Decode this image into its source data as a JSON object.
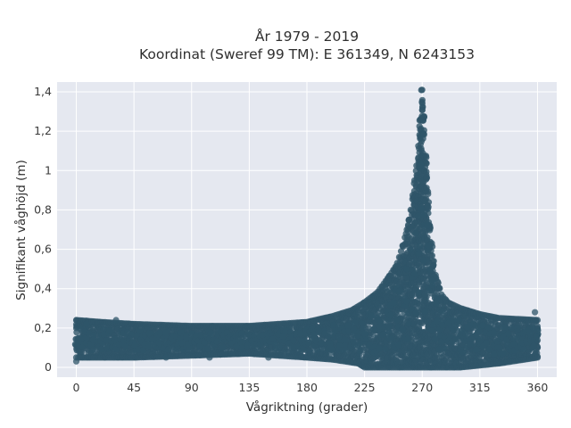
{
  "chart_data": {
    "type": "scatter",
    "title_line1": "År 1979 - 2019",
    "title_line2": "Koordinat (Sweref 99 TM): E 361349, N 6243153",
    "xlabel": "Vågriktning (grader)",
    "ylabel": "Signifikant våghöjd (m)",
    "xlim": [
      -15,
      375
    ],
    "ylim": [
      -0.05,
      1.45
    ],
    "x_ticks": [
      0,
      45,
      90,
      135,
      180,
      225,
      270,
      315,
      360
    ],
    "x_tick_labels": [
      "0",
      "45",
      "90",
      "135",
      "180",
      "225",
      "270",
      "315",
      "360"
    ],
    "y_ticks": [
      0,
      0.2,
      0.4,
      0.6,
      0.8,
      1.0,
      1.2,
      1.4
    ],
    "y_tick_labels": [
      "0",
      "0,2",
      "0,4",
      "0,6",
      "0,8",
      "1",
      "1,2",
      "1,4"
    ],
    "grid": true,
    "marker_color": "#2f5569",
    "plot_background": "#e5e8f0",
    "upper_envelope": {
      "x": [
        0,
        20,
        45,
        90,
        135,
        180,
        200,
        215,
        225,
        235,
        245,
        250,
        255,
        258,
        261,
        264,
        266,
        268,
        269,
        270,
        271,
        272,
        274,
        276,
        280,
        285,
        290,
        300,
        315,
        330,
        360
      ],
      "y": [
        0.24,
        0.23,
        0.22,
        0.21,
        0.21,
        0.23,
        0.26,
        0.29,
        0.33,
        0.38,
        0.47,
        0.52,
        0.62,
        0.7,
        0.8,
        0.95,
        1.05,
        1.2,
        1.32,
        1.41,
        1.35,
        1.2,
        0.95,
        0.72,
        0.48,
        0.37,
        0.33,
        0.3,
        0.27,
        0.25,
        0.24
      ]
    },
    "lower_envelope": {
      "x": [
        0,
        45,
        90,
        135,
        180,
        200,
        220,
        225,
        240,
        260,
        280,
        300,
        330,
        360
      ],
      "y": [
        0.05,
        0.05,
        0.06,
        0.07,
        0.05,
        0.04,
        0.02,
        0.0,
        0.0,
        0.0,
        0.0,
        0.0,
        0.02,
        0.05
      ]
    },
    "outlier_points": {
      "x": [
        0,
        31,
        104,
        285,
        333,
        358,
        8,
        70,
        150,
        210
      ],
      "y": [
        0.03,
        0.24,
        0.05,
        0.13,
        0.07,
        0.28,
        0.22,
        0.05,
        0.05,
        0.09
      ]
    }
  }
}
